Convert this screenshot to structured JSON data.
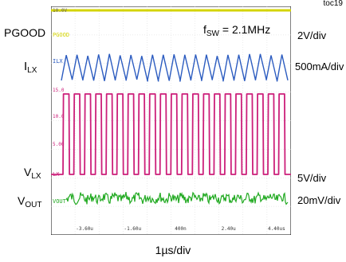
{
  "figure_id": "toc19",
  "annotation": {
    "prefix": "f",
    "sub": "SW",
    "rest": " = 2.1MHz"
  },
  "x_scale": "1µs/div",
  "channels": [
    {
      "main": "PGOOD",
      "sub": "",
      "scale": "2V/div",
      "screen_tag": "PGOOD",
      "color": "#d4d400"
    },
    {
      "main": "I",
      "sub": "LX",
      "scale": "500mA/div",
      "screen_tag": "ILX",
      "color": "#2c5cc0"
    },
    {
      "main": "V",
      "sub": "LX",
      "scale": "5V/div",
      "screen_tag": "LX",
      "color": "#cc1f7a"
    },
    {
      "main": "V",
      "sub": "OUT",
      "scale": "20mV/div",
      "screen_tag": "VOUT",
      "color": "#22aa22"
    }
  ],
  "screen": {
    "top_readout": "10.0V",
    "vlx_grid_labels": [
      "15.0",
      "10.0",
      "5.00"
    ],
    "x_ticks": [
      "-3.60u",
      "-1.60u",
      "400n",
      "2.40u",
      "4.40us"
    ]
  },
  "chart_data": {
    "type": "line",
    "x_unit": "µs",
    "x_range": [
      -5,
      5
    ],
    "x_ticks": [
      -3.6,
      -1.6,
      0.4,
      2.4,
      4.4
    ],
    "switching_frequency_mhz": 2.1,
    "series": [
      {
        "name": "PGOOD",
        "shape": "constant-high"
      },
      {
        "name": "ILX",
        "shape": "sawtooth",
        "cycles": 21
      },
      {
        "name": "VLX",
        "shape": "pulse",
        "cycles": 21,
        "duty": 0.55
      },
      {
        "name": "VOUT",
        "shape": "noisy-ripple"
      }
    ]
  }
}
